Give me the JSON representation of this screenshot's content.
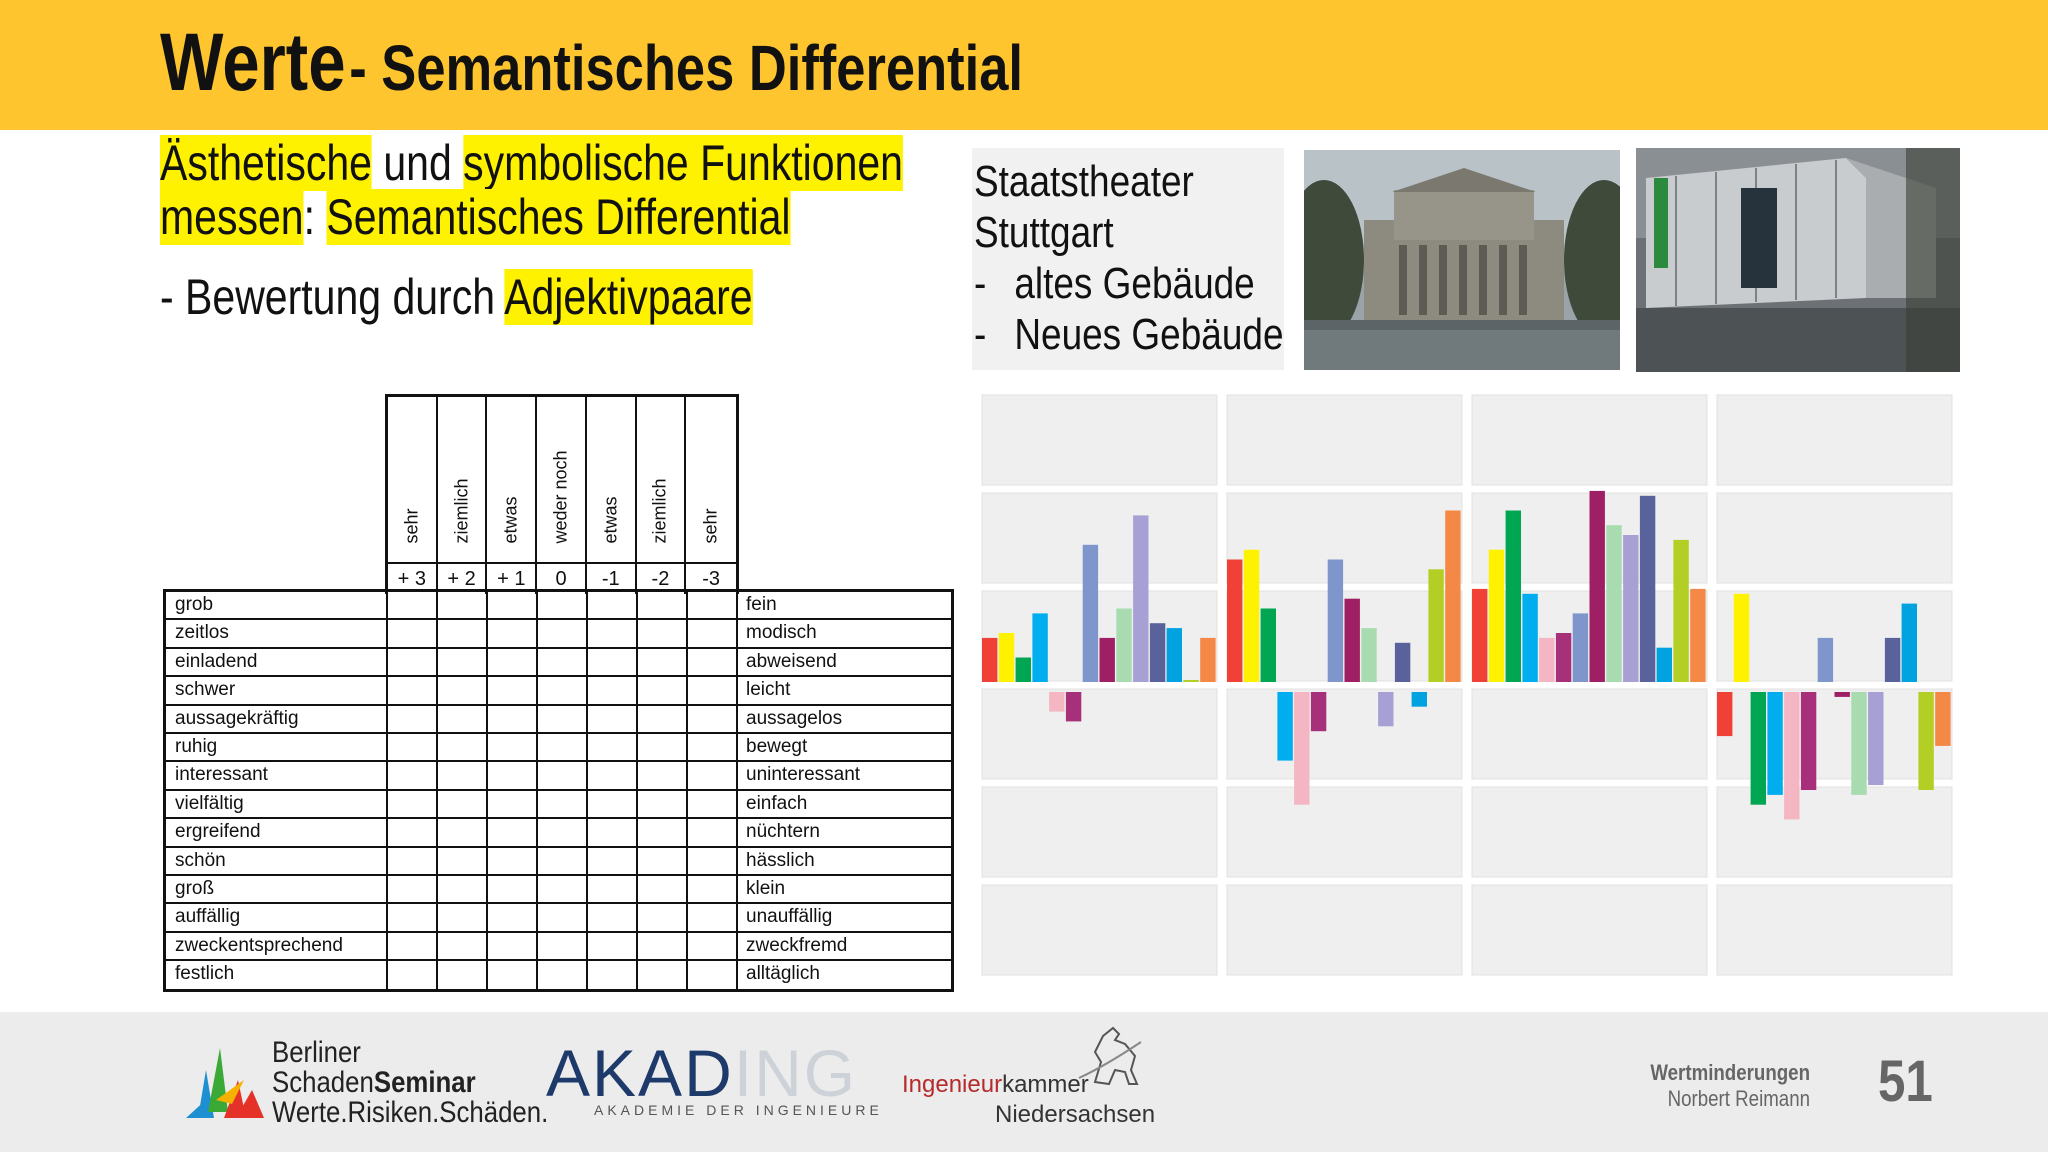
{
  "header": {
    "title_main": "Werte",
    "title_sub": "- Semantisches Differential",
    "color": "#fec52e"
  },
  "intro": {
    "line1_a": "Ästhetische",
    "line1_b": " und ",
    "line1_c": "symbolische Funktionen",
    "line2_a": "messen",
    "line2_b": ": ",
    "line2_c": "Semantisches Differential",
    "line3_a": "- Bewertung durch ",
    "line3_b": "Adjektivpaare",
    "highlight_color": "#fff200"
  },
  "theater": {
    "line1": "Staatstheater",
    "line2": "Stuttgart",
    "bullet": "-",
    "item1": "altes Gebäude",
    "item2": "Neues Gebäude"
  },
  "table": {
    "scale_labels": [
      "sehr",
      "ziemlich",
      "etwas",
      "weder noch",
      "etwas",
      "ziemlich",
      "sehr"
    ],
    "scale_values": [
      "+ 3",
      "+ 2",
      "+ 1",
      "0",
      "-1",
      "-2",
      "-3"
    ],
    "rows": [
      {
        "left": "grob",
        "right": "fein"
      },
      {
        "left": "zeitlos",
        "right": "modisch"
      },
      {
        "left": "einladend",
        "right": "abweisend"
      },
      {
        "left": "schwer",
        "right": "leicht"
      },
      {
        "left": "aussagekräftig",
        "right": "aussagelos"
      },
      {
        "left": "ruhig",
        "right": "bewegt"
      },
      {
        "left": "interessant",
        "right": "uninteressant"
      },
      {
        "left": "vielfältig",
        "right": "einfach"
      },
      {
        "left": "ergreifend",
        "right": "nüchtern"
      },
      {
        "left": "schön",
        "right": "hässlich"
      },
      {
        "left": "groß",
        "right": "klein"
      },
      {
        "left": "auffällig",
        "right": "unauffällig"
      },
      {
        "left": "zweckentsprechend",
        "right": "zweckfremd"
      },
      {
        "left": "festlich",
        "right": "alltäglich"
      }
    ]
  },
  "chart_data": {
    "type": "bar",
    "ylim": [
      -3,
      3
    ],
    "grid": true,
    "series_colors": [
      "#ef4136",
      "#fff200",
      "#00a651",
      "#00aeef",
      "#f4b6c2",
      "#a6317a",
      "#7f96cc",
      "#9e1f63",
      "#a8dbb0",
      "#a7a0d5",
      "#59629a",
      "#00a3e0",
      "#b3cf25",
      "#f48846"
    ],
    "panels": [
      {
        "values": [
          0.45,
          0.5,
          0.25,
          0.7,
          -0.2,
          -0.3,
          1.4,
          0.45,
          0.75,
          1.7,
          0.6,
          0.55,
          0.02,
          0.45
        ]
      },
      {
        "values": [
          1.25,
          1.35,
          0.75,
          -0.7,
          -1.15,
          -0.4,
          1.25,
          0.85,
          0.55,
          -0.35,
          0.4,
          -0.15,
          1.15,
          1.75
        ]
      },
      {
        "values": [
          0.95,
          1.35,
          1.75,
          0.9,
          0.45,
          0.5,
          0.7,
          1.95,
          1.6,
          1.5,
          1.9,
          0.35,
          1.45,
          0.95
        ]
      },
      {
        "values": [
          -0.45,
          0.9,
          -1.15,
          -1.05,
          -1.3,
          -1.0,
          0.45,
          -0.05,
          -1.05,
          -0.95,
          0.45,
          0.8,
          -1.0,
          -0.55
        ]
      }
    ]
  },
  "footer": {
    "bss_line1": "Berliner",
    "bss_line2a": "Schaden",
    "bss_line2b": "Seminar",
    "bss_line3": "Werte.Risiken.Schäden.",
    "akading_aka": "AKAD",
    "akading_ing": "ING",
    "akading_sub": "AKADEMIE DER INGENIEURE",
    "ingk_a": "Ingenieur",
    "ingk_b": "kammer",
    "ingk_c": "Niedersachsen",
    "author_topic": "Wertminderungen",
    "author_name": "Norbert Reimann",
    "page_number": "51"
  }
}
